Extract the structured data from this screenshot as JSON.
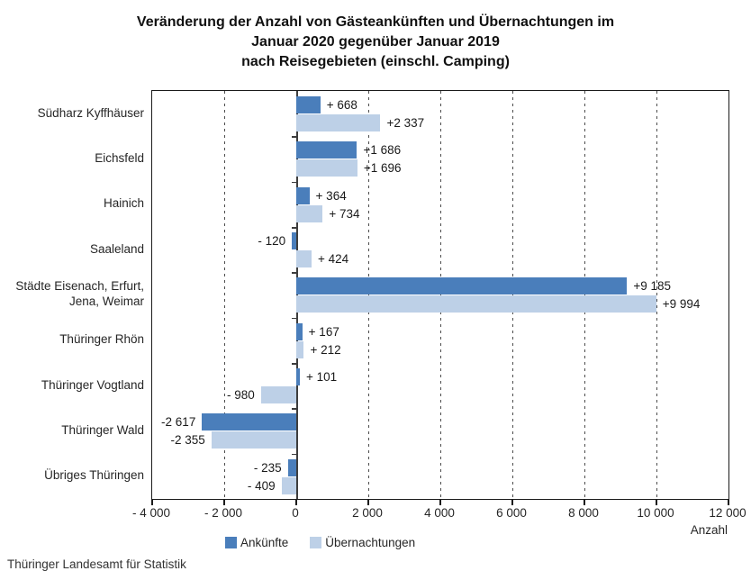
{
  "title": {
    "lines": [
      "Veränderung der Anzahl von Gästeankünften und Übernachtungen im",
      "Januar 2020 gegenüber Januar 2019",
      "nach Reisegebieten (einschl. Camping)"
    ]
  },
  "source": "Thüringer Landesamt für Statistik",
  "colors": {
    "ankuenfte": "#4a7ebb",
    "uebernachtungen": "#bdd0e7",
    "axis": "#1a1a1a"
  },
  "axis": {
    "min": -4000,
    "max": 12000,
    "step": 2000,
    "unit_label": "Anzahl",
    "tick_labels": [
      "- 4 000",
      "- 2 000",
      "0",
      "2 000",
      "4 000",
      "6 000",
      "8 000",
      "10 000",
      "12 000"
    ]
  },
  "chart_data": {
    "type": "bar",
    "orientation": "horizontal",
    "title": "Veränderung der Anzahl von Gästeankünften und Übernachtungen im Januar 2020 gegenüber Januar 2019 nach Reisegebieten (einschl. Camping)",
    "xlabel": "Anzahl",
    "xlim": [
      -4000,
      12000
    ],
    "grid": "dashed-vertical-every-2000",
    "legend_position": "bottom",
    "categories": [
      "Südharz Kyffhäuser",
      "Eichsfeld",
      "Hainich",
      "Saaleland",
      "Städte Eisenach, Erfurt,\nJena, Weimar",
      "Thüringer Rhön",
      "Thüringer Vogtland",
      "Thüringer Wald",
      "Übriges Thüringen"
    ],
    "series": [
      {
        "name": "Ankünfte",
        "color": "#4a7ebb",
        "values": [
          668,
          1686,
          364,
          -120,
          9185,
          167,
          101,
          -2617,
          -235
        ],
        "labels": [
          "+ 668",
          "+1 686",
          "+ 364",
          "- 120",
          "+9 185",
          "+ 167",
          "+ 101",
          "-2 617",
          "- 235"
        ]
      },
      {
        "name": "Übernachtungen",
        "color": "#bdd0e7",
        "values": [
          2337,
          1696,
          734,
          424,
          9994,
          212,
          -980,
          -2355,
          -409
        ],
        "labels": [
          "+2 337",
          "+1 696",
          "+ 734",
          "+ 424",
          "+9 994",
          "+ 212",
          "- 980",
          "-2 355",
          "- 409"
        ]
      }
    ]
  }
}
